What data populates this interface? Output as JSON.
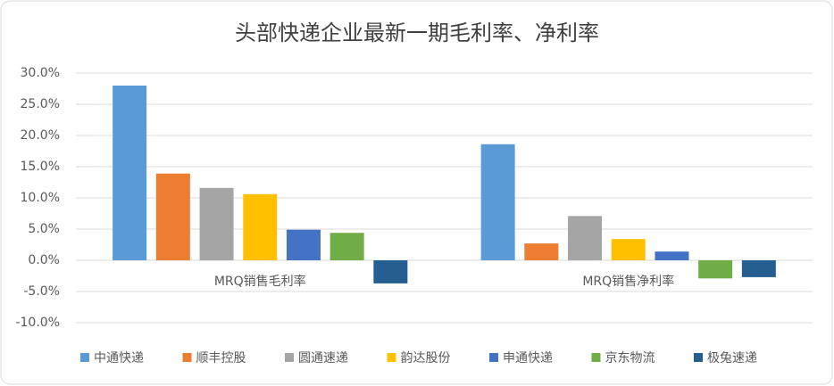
{
  "chart_data": {
    "type": "bar",
    "title": "头部快递企业最新一期毛利率、净利率",
    "categories": [
      "MRQ销售毛利率",
      "MRQ销售净利率"
    ],
    "series": [
      {
        "name": "中通快递",
        "color": "#5b9bd5",
        "values": [
          28.0,
          18.6
        ]
      },
      {
        "name": "顺丰控股",
        "color": "#ed7d31",
        "values": [
          13.9,
          2.7
        ]
      },
      {
        "name": "圆通速递",
        "color": "#a5a5a5",
        "values": [
          11.6,
          7.1
        ]
      },
      {
        "name": "韵达股份",
        "color": "#ffc000",
        "values": [
          10.6,
          3.4
        ]
      },
      {
        "name": "申通快递",
        "color": "#4472c4",
        "values": [
          4.9,
          1.4
        ]
      },
      {
        "name": "京东物流",
        "color": "#70ad47",
        "values": [
          4.4,
          -2.9
        ]
      },
      {
        "name": "极兔速递",
        "color": "#255e91",
        "values": [
          -3.7,
          -2.7
        ]
      }
    ],
    "ylim": [
      -10,
      30
    ],
    "yticks": [
      {
        "value": -10,
        "label": "-10.0%"
      },
      {
        "value": -5,
        "label": "-5.0%"
      },
      {
        "value": 0,
        "label": "0.0%"
      },
      {
        "value": 5,
        "label": "5.0%"
      },
      {
        "value": 10,
        "label": "10.0%"
      },
      {
        "value": 15,
        "label": "15.0%"
      },
      {
        "value": 20,
        "label": "20.0%"
      },
      {
        "value": 25,
        "label": "25.0%"
      },
      {
        "value": 30,
        "label": "30.0%"
      }
    ],
    "grid": true,
    "legend": "bottom"
  }
}
